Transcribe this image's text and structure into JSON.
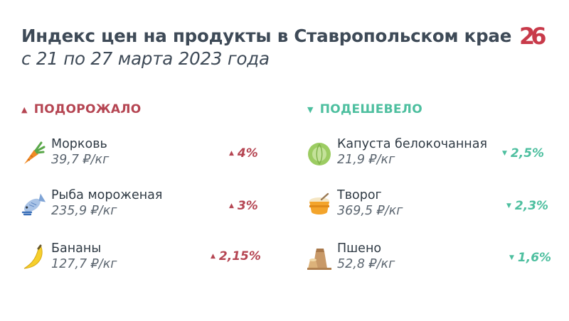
{
  "header": {
    "title": "Индекс цен на продукты в Ставропольском крае",
    "subtitle": "с 21 по 27 марта 2023 года",
    "logo_text": "26"
  },
  "colors": {
    "up": "#b54552",
    "down": "#4dbf9f",
    "text": "#3e4a57"
  },
  "up_section": {
    "heading": "ПОДОРОЖАЛО",
    "arrow": "▲",
    "items": [
      {
        "name": "Морковь",
        "price": "39,7 ₽/кг",
        "change": "4%",
        "icon": "carrot-icon"
      },
      {
        "name": "Рыба мороженая",
        "price": "235,9 ₽/кг",
        "change": "3%",
        "icon": "fish-icon"
      },
      {
        "name": "Бананы",
        "price": "127,7 ₽/кг",
        "change": "2,15%",
        "icon": "banana-icon"
      }
    ]
  },
  "down_section": {
    "heading": "ПОДЕШЕВЕЛО",
    "arrow": "▼",
    "items": [
      {
        "name": "Капуста белокочанная",
        "price": "21,9 ₽/кг",
        "change": "2,5%",
        "icon": "cabbage-icon"
      },
      {
        "name": "Творог",
        "price": "369,5 ₽/кг",
        "change": "2,3%",
        "icon": "cottage-cheese-icon"
      },
      {
        "name": "Пшено",
        "price": "52,8 ₽/кг",
        "change": "1,6%",
        "icon": "millet-sack-icon"
      }
    ]
  }
}
